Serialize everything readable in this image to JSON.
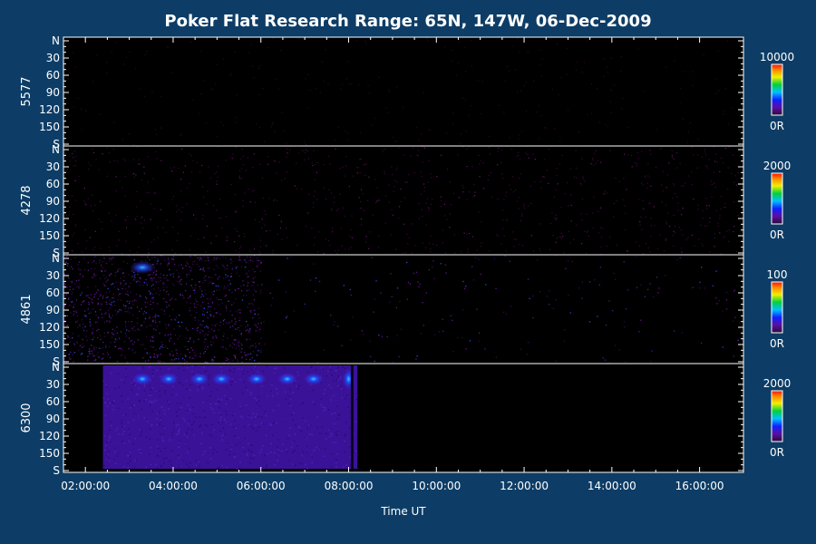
{
  "chart_data": {
    "type": "heatmap",
    "title": "Poker Flat Research Range: 65N, 147W, 06-Dec-2009",
    "xlabel": "Time UT",
    "x_ticks": [
      "02:00:00",
      "04:00:00",
      "06:00:00",
      "08:00:00",
      "10:00:00",
      "12:00:00",
      "14:00:00",
      "16:00:00"
    ],
    "x_range_hours": [
      1.5,
      17.0
    ],
    "y_range_deg": [
      0,
      180
    ],
    "y_tick_labels": [
      "N",
      "30",
      "60",
      "90",
      "120",
      "150",
      "S"
    ],
    "panels": [
      {
        "name": "5577",
        "scale_max": "10000",
        "scale_min": "0R",
        "data_start_hour": 1.5,
        "data_end_hour": 17.0,
        "intensity": "very low"
      },
      {
        "name": "4278",
        "scale_max": "2000",
        "scale_min": "0R",
        "data_start_hour": 1.5,
        "data_end_hour": 17.0,
        "intensity": "low"
      },
      {
        "name": "4861",
        "scale_max": "100",
        "scale_min": "0R",
        "data_start_hour": 1.5,
        "data_end_hour": 17.0,
        "intensity": "moderate before 06:00"
      },
      {
        "name": "6300",
        "scale_max": "2000",
        "scale_min": "0R",
        "data_start_hour": 2.4,
        "data_end_hour": 8.2,
        "intensity": "high 02:24–08:10"
      }
    ]
  }
}
